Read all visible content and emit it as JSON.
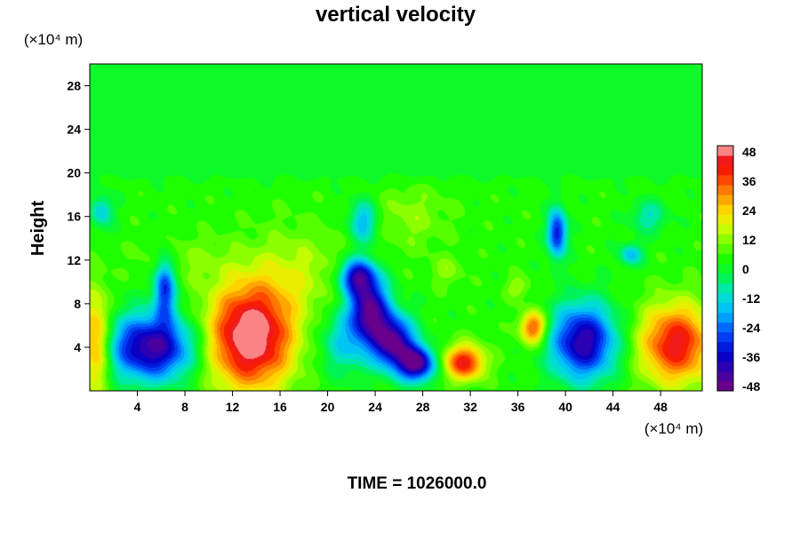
{
  "chart_data": {
    "type": "heatmap",
    "title": "vertical velocity",
    "xlabel": "",
    "ylabel": "Height",
    "x_unit": "(×10⁴ m)",
    "y_unit": "(×10⁴ m)",
    "footer": "TIME = 1026000.0",
    "xlim": [
      0,
      51.5
    ],
    "ylim": [
      0,
      30
    ],
    "xticks": [
      "4",
      "8",
      "12",
      "16",
      "20",
      "24",
      "28",
      "32",
      "36",
      "40",
      "44",
      "48"
    ],
    "yticks": [
      "4",
      "8",
      "12",
      "16",
      "20",
      "24",
      "28"
    ],
    "colorbar": {
      "range": [
        -50,
        50
      ],
      "ticks": [
        "48",
        "36",
        "24",
        "12",
        "0",
        "-12",
        "-24",
        "-36",
        "-48"
      ]
    },
    "background_value": 4,
    "upper_layer_value": 0,
    "features": [
      {
        "x": 0.5,
        "y": 4.5,
        "rx": 1.2,
        "ry": 4.5,
        "value": 34
      },
      {
        "x": 5.2,
        "y": 4.0,
        "rx": 3.6,
        "ry": 3.0,
        "value": -44
      },
      {
        "x": 6.3,
        "y": 9.5,
        "rx": 0.9,
        "ry": 2.8,
        "value": -30
      },
      {
        "x": 13.5,
        "y": 5.0,
        "rx": 3.6,
        "ry": 4.8,
        "value": 55
      },
      {
        "x": 21.5,
        "y": 4.5,
        "rx": 2.2,
        "ry": 3.0,
        "value": -14
      },
      {
        "x": 23.5,
        "y": 7.5,
        "rx": 1.6,
        "ry": 2.8,
        "value": -44
      },
      {
        "x": 22.5,
        "y": 10.5,
        "rx": 1.5,
        "ry": 1.6,
        "value": -36
      },
      {
        "x": 25.5,
        "y": 4.5,
        "rx": 1.7,
        "ry": 2.4,
        "value": -46
      },
      {
        "x": 27.5,
        "y": 2.5,
        "rx": 1.5,
        "ry": 1.6,
        "value": -46
      },
      {
        "x": 23.0,
        "y": 15.5,
        "rx": 1.2,
        "ry": 2.0,
        "value": -18
      },
      {
        "x": 31.5,
        "y": 2.6,
        "rx": 1.7,
        "ry": 1.6,
        "value": 42
      },
      {
        "x": 37.3,
        "y": 5.8,
        "rx": 1.1,
        "ry": 1.5,
        "value": 38
      },
      {
        "x": 41.5,
        "y": 4.5,
        "rx": 2.7,
        "ry": 3.4,
        "value": -42
      },
      {
        "x": 39.3,
        "y": 14.5,
        "rx": 0.8,
        "ry": 2.2,
        "value": -34
      },
      {
        "x": 49.3,
        "y": 4.3,
        "rx": 3.0,
        "ry": 3.6,
        "value": 44
      },
      {
        "x": 45.5,
        "y": 12.5,
        "rx": 1.0,
        "ry": 1.0,
        "value": -16
      },
      {
        "x": 36.0,
        "y": 9.5,
        "rx": 1.0,
        "ry": 1.0,
        "value": 14
      },
      {
        "x": 17.5,
        "y": 11.0,
        "rx": 4.0,
        "ry": 4.0,
        "value": 14
      },
      {
        "x": 27.0,
        "y": 16.0,
        "rx": 3.0,
        "ry": 3.0,
        "value": 12
      },
      {
        "x": 8.0,
        "y": 12.0,
        "rx": 4.0,
        "ry": 2.0,
        "value": 10
      },
      {
        "x": 30.0,
        "y": 11.0,
        "rx": 1.3,
        "ry": 1.3,
        "value": 12
      },
      {
        "x": 1.0,
        "y": 16.5,
        "rx": 1.0,
        "ry": 1.5,
        "value": -14
      },
      {
        "x": 47.0,
        "y": 16.0,
        "rx": 1.5,
        "ry": 1.5,
        "value": -10
      }
    ]
  }
}
